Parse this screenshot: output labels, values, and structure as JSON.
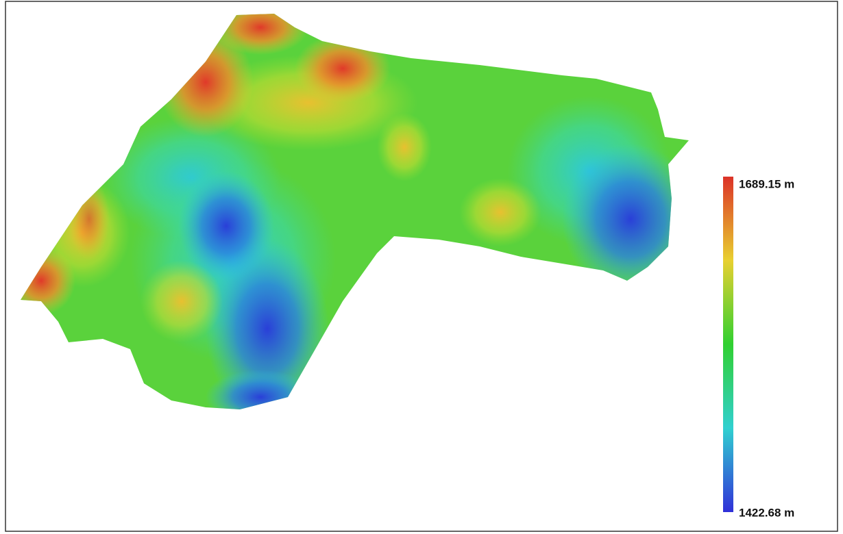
{
  "legend": {
    "max_label": "1689.15 m",
    "min_label": "1422.68 m"
  }
}
